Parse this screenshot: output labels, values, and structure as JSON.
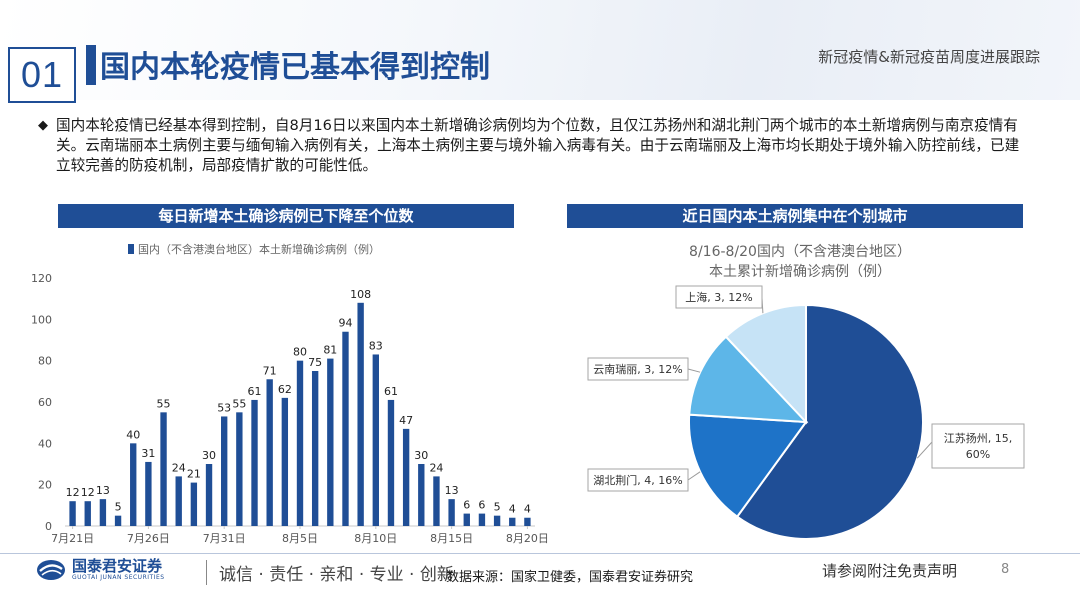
{
  "header": {
    "section_number": "01",
    "title": "国内本轮疫情已基本得到控制",
    "report_name": "新冠疫情&新冠疫苗周度进展跟踪"
  },
  "bullet": {
    "marker": "◆",
    "text": "国内本轮疫情已经基本得到控制，自8月16日以来国内本土新增确诊病例均为个位数，且仅江苏扬州和湖北荆门两个城市的本土新增病例与南京疫情有关。云南瑞丽本土病例主要与缅甸输入病例有关，上海本土病例主要与境外输入病毒有关。由于云南瑞丽及上海市均长期处于境外输入防控前线，已建立较完善的防疫机制，局部疫情扩散的可能性低。"
  },
  "panels": {
    "left_header": "每日新增本土确诊病例已下降至个位数",
    "right_header": "近日国内本土病例集中在个别城市"
  },
  "colors": {
    "brand": "#1f4e96",
    "bar": "#1f4e96",
    "pie_jiangsu": "#1f4e96",
    "pie_hubei": "#1e73c8",
    "pie_yunnan": "#5db6e8",
    "pie_shanghai": "#c6e3f6"
  },
  "chart_data": [
    {
      "type": "bar",
      "legend": "国内（不含港澳台地区）本土新增确诊病例（例）",
      "legend_position": "top",
      "x": [
        "7月21日",
        "7月22日",
        "7月23日",
        "7月24日",
        "7月25日",
        "7月26日",
        "7月27日",
        "7月28日",
        "7月29日",
        "7月30日",
        "7月31日",
        "8月1日",
        "8月2日",
        "8月3日",
        "8月4日",
        "8月5日",
        "8月6日",
        "8月7日",
        "8月8日",
        "8月9日",
        "8月10日",
        "8月11日",
        "8月12日",
        "8月13日",
        "8月14日",
        "8月15日",
        "8月16日",
        "8月17日",
        "8月18日",
        "8月19日",
        "8月20日"
      ],
      "values": [
        12,
        12,
        13,
        5,
        40,
        31,
        55,
        24,
        21,
        30,
        53,
        55,
        61,
        71,
        62,
        80,
        75,
        81,
        94,
        108,
        83,
        61,
        47,
        30,
        24,
        13,
        6,
        6,
        5,
        4,
        4
      ],
      "x_tick_labels": [
        "7月21日",
        "7月26日",
        "7月31日",
        "8月5日",
        "8月10日",
        "8月15日",
        "8月20日"
      ],
      "y_ticks": [
        "0",
        "20",
        "40",
        "60",
        "80",
        "100",
        "120"
      ],
      "ylim": [
        0,
        120
      ],
      "grid": false
    },
    {
      "type": "pie",
      "title": "8/16-8/20国内（不含港澳台地区）本土累计新增确诊病例（例）",
      "title_lines": [
        "8/16-8/20国内（不含港澳台地区）",
        "本土累计新增确诊病例（例）"
      ],
      "slices": [
        {
          "label": "江苏扬州",
          "value": 15,
          "percent": "60%",
          "label_line1": "江苏扬州, 15,",
          "label_line2": "60%"
        },
        {
          "label": "湖北荆门",
          "value": 4,
          "percent": "16%",
          "label_text": "湖北荆门, 4, 16%"
        },
        {
          "label": "云南瑞丽",
          "value": 3,
          "percent": "12%",
          "label_text": "云南瑞丽, 3, 12%"
        },
        {
          "label": "上海",
          "value": 3,
          "percent": "12%",
          "label_text": "上海, 3, 12%"
        }
      ]
    }
  ],
  "footer": {
    "logo_cn": "国泰君安证券",
    "logo_en": "GUOTAI JUNAN SECURITIES",
    "slogan": "诚信 · 责任 · 亲和 · 专业 · 创新",
    "source": "数据来源：国家卫健委，国泰君安证券研究",
    "disclaimer": "请参阅附注免责声明",
    "page": "8"
  }
}
